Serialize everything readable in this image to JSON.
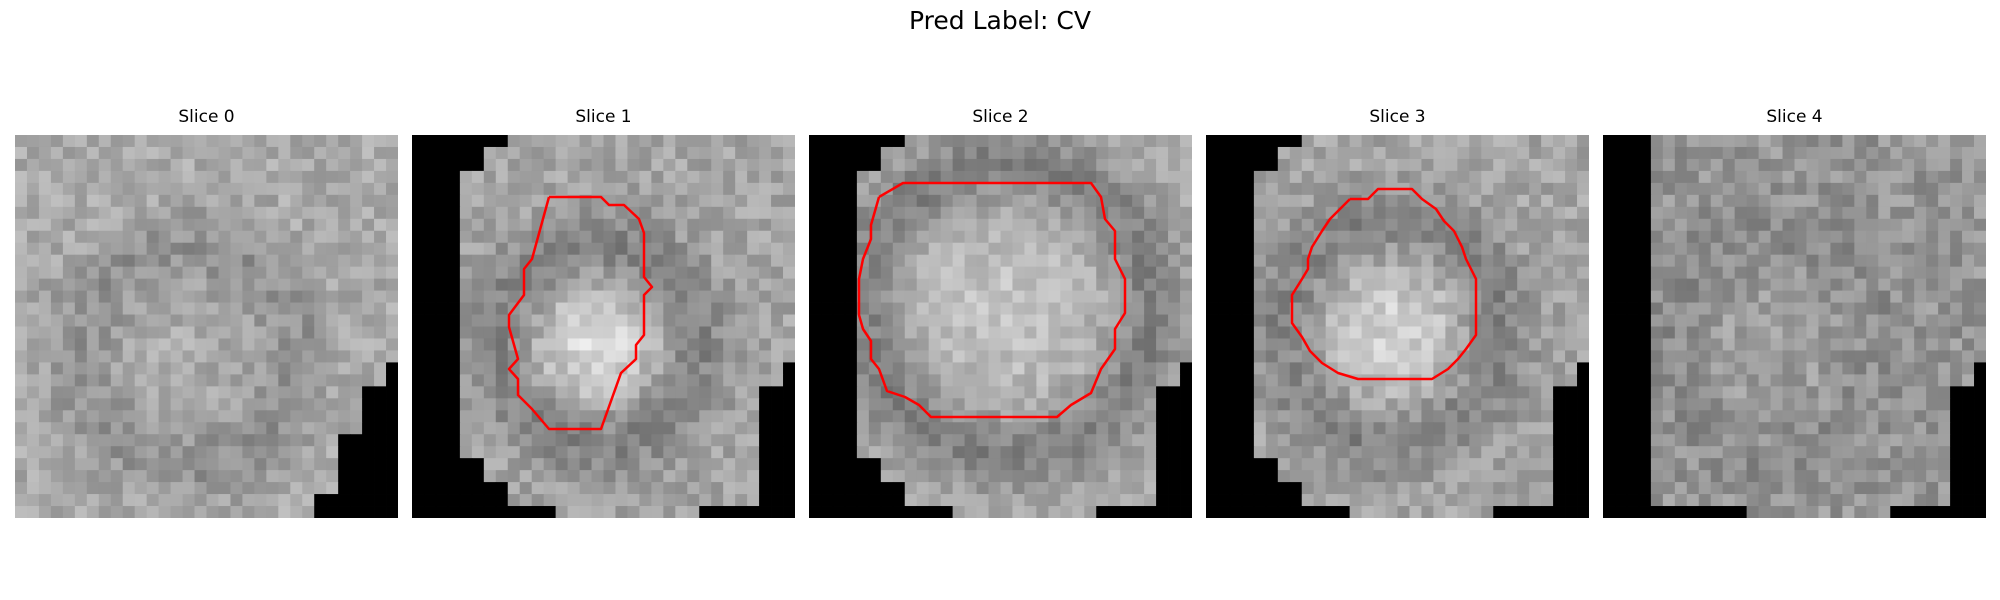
{
  "figure": {
    "title": "Pred Label: CV"
  },
  "panels": [
    {
      "title": "Slice 0",
      "has_contour": false
    },
    {
      "title": "Slice 1",
      "has_contour": true
    },
    {
      "title": "Slice 2",
      "has_contour": true
    },
    {
      "title": "Slice 3",
      "has_contour": true
    },
    {
      "title": "Slice 4",
      "has_contour": false
    }
  ],
  "colors": {
    "contour": "#ff0000",
    "background_mask": "#000000",
    "page_background": "#ffffff"
  },
  "image": {
    "colormap": "grayscale",
    "grid_cells": 32
  }
}
